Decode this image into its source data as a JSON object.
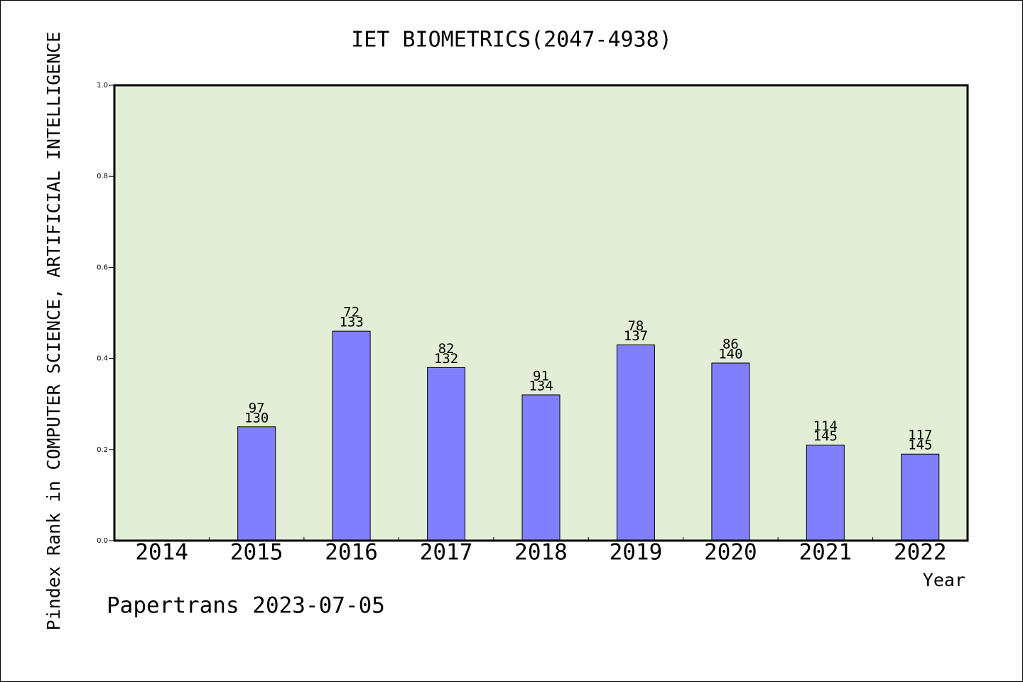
{
  "chart_data": {
    "type": "bar",
    "title": "IET BIOMETRICS(2047-4938)",
    "xlabel": "Year",
    "ylabel": "Pindex Rank in COMPUTER SCIENCE, ARTIFICIAL INTELLIGENCE",
    "footer": "Papertrans 2023-07-05",
    "ylim": [
      0,
      1.0
    ],
    "yticks": [
      "0.0",
      "0.2",
      "0.4",
      "0.6",
      "0.8",
      "1.0"
    ],
    "categories": [
      "2014",
      "2015",
      "2016",
      "2017",
      "2018",
      "2019",
      "2020",
      "2021",
      "2022"
    ],
    "values": [
      null,
      0.25,
      0.46,
      0.38,
      0.32,
      0.43,
      0.39,
      0.21,
      0.19
    ],
    "rank_labels": [
      "",
      "97",
      "72",
      "82",
      "91",
      "78",
      "86",
      "114",
      "117"
    ],
    "total_labels": [
      "",
      "130",
      "133",
      "132",
      "134",
      "137",
      "140",
      "145",
      "145"
    ],
    "grid": false,
    "colors": {
      "plot_background": "#e2efd6",
      "bar_fill": "#8080ff",
      "bar_stroke": "#000000",
      "axis": "#000000",
      "text": "#000000"
    }
  }
}
